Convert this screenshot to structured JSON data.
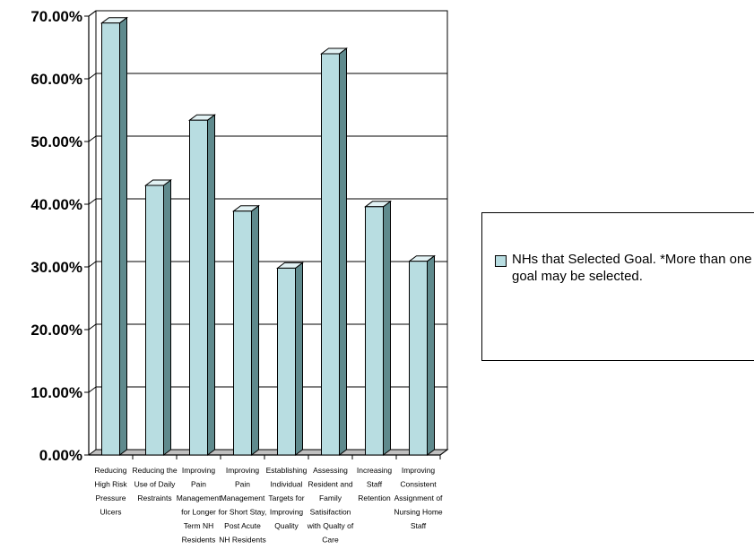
{
  "chart_data": {
    "type": "bar",
    "categories": [
      [
        "Reducing",
        "High Risk",
        "Pressure",
        "Ulcers"
      ],
      [
        "Reducing the",
        "Use of Daily",
        "Restraints"
      ],
      [
        "Improving",
        "Pain",
        "Management",
        "for Longer",
        "Term NH",
        "Residents"
      ],
      [
        "Improving",
        "Pain",
        "Management",
        "for Short Stay,",
        "Post Acute",
        "NH Residents"
      ],
      [
        "Establishing",
        "Individual",
        "Targets for",
        "Improving",
        "Quality"
      ],
      [
        "Assessing",
        "Resident and",
        "Family",
        "Satisifaction",
        "with Qualty of",
        "Care"
      ],
      [
        "Increasing",
        "Staff",
        "Retention"
      ],
      [
        "Improving",
        "Consistent",
        "Assignment of",
        "Nursing Home",
        "Staff"
      ]
    ],
    "series": [
      {
        "name": "NHs that Selected Goal. *More than one goal may be selected.",
        "values": [
          68.9,
          43.0,
          53.4,
          38.9,
          29.8,
          64.0,
          39.6,
          30.9
        ]
      }
    ],
    "y_ticks": [
      "0.00%",
      "10.00%",
      "20.00%",
      "30.00%",
      "40.00%",
      "50.00%",
      "60.00%",
      "70.00%"
    ],
    "ylim": [
      0,
      70
    ],
    "grid": true,
    "legend_position": "right",
    "colors": {
      "bar_front": "#b8dde1",
      "bar_side": "#5f8a8d",
      "bar_top": "#e2f2f4",
      "outline": "#000000"
    }
  }
}
